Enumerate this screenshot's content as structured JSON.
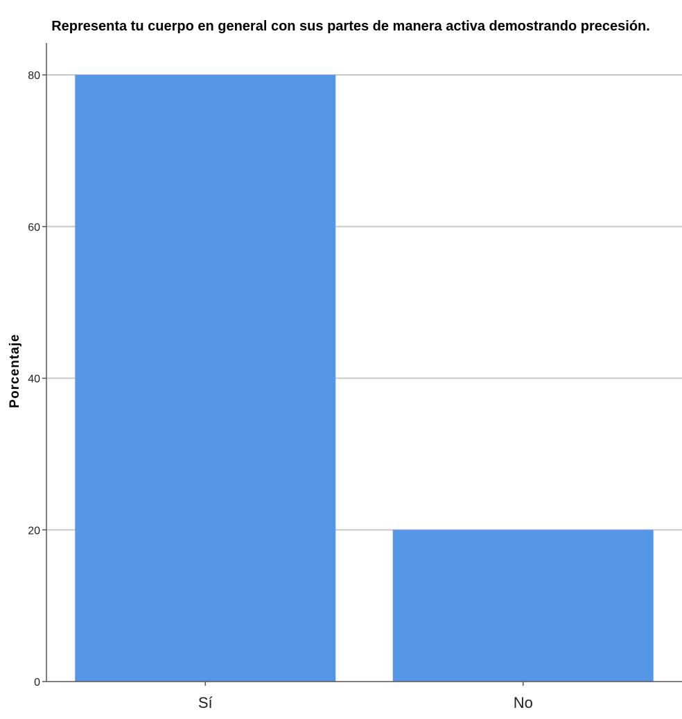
{
  "chart_data": {
    "type": "bar",
    "title": "Representa tu cuerpo en general con sus partes de manera activa demostrando precesión.",
    "xlabel": "",
    "ylabel": "Porcentaje",
    "categories": [
      "Sí",
      "No"
    ],
    "values": [
      80,
      20
    ],
    "ylim": [
      0,
      80
    ],
    "yticks": [
      0,
      20,
      40,
      60,
      80
    ],
    "grid": true,
    "bar_color": "#5596e6",
    "grid_color": "#c8c8c8",
    "axis_color": "#555555"
  }
}
